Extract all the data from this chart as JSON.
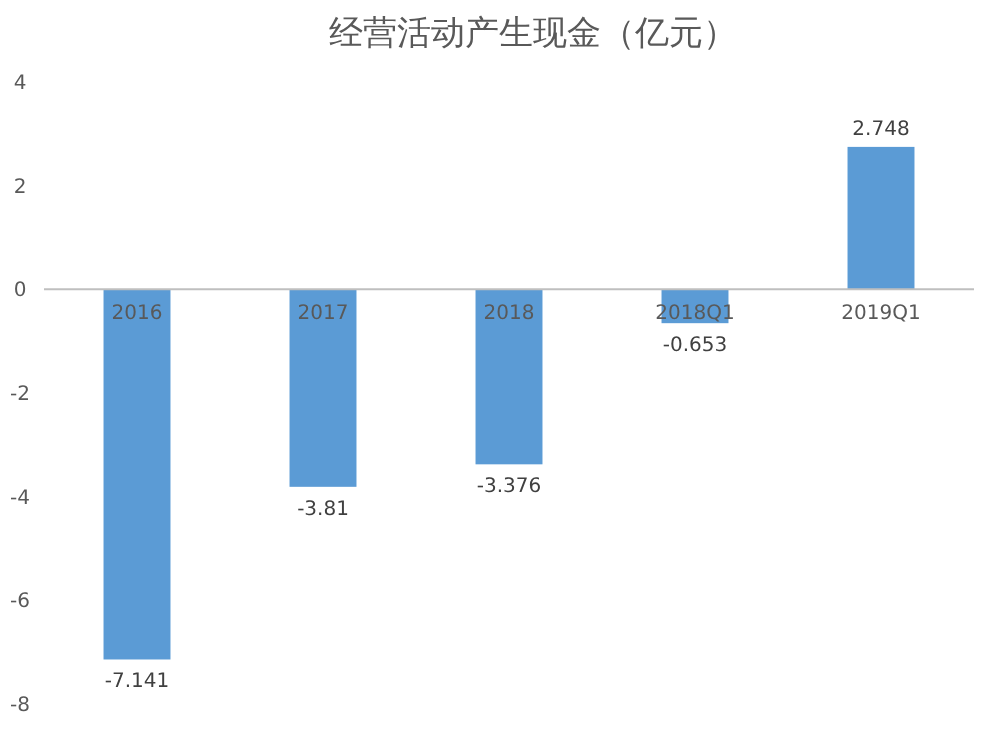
{
  "chart_data": {
    "type": "bar",
    "title": "经营活动产生现金（亿元）",
    "categories": [
      "2016",
      "2017",
      "2018",
      "2018Q1",
      "2019Q1"
    ],
    "values": [
      -7.141,
      -3.81,
      -3.376,
      -0.653,
      2.748
    ],
    "color": "#5b9bd5",
    "ylim": [
      -8,
      4
    ],
    "yticks": [
      -8,
      -6,
      -4,
      -2,
      0,
      2,
      4
    ],
    "grid": false,
    "data_labels": true
  }
}
